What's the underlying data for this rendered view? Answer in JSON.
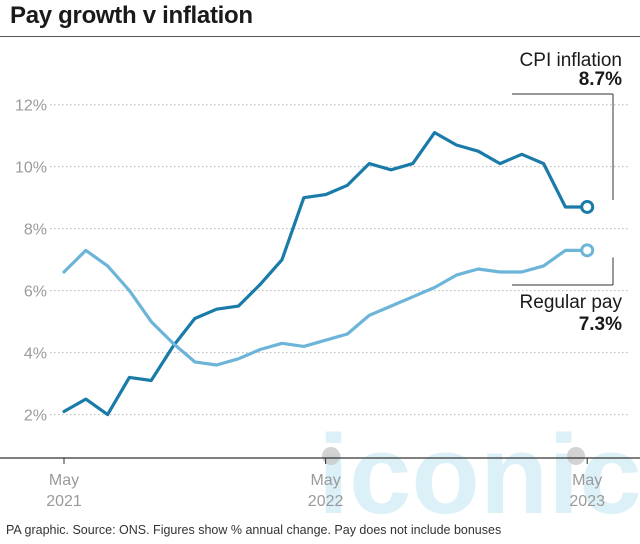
{
  "title": "Pay growth v inflation",
  "footnote": "PA graphic. Source: ONS. Figures show % annual change. Pay does not include bonuses",
  "watermark": "iconic",
  "chart_data": {
    "type": "line",
    "title": "Pay growth v inflation",
    "xlabel": "",
    "ylabel": "",
    "x_ticks": [
      {
        "line1": "May",
        "line2": "2021",
        "index": 0
      },
      {
        "line1": "May",
        "line2": "2022",
        "index": 12
      },
      {
        "line1": "May",
        "line2": "2023",
        "index": 24
      }
    ],
    "y_ticks": [
      "2%",
      "4%",
      "6%",
      "8%",
      "10%",
      "12%"
    ],
    "y_tick_values": [
      2,
      4,
      6,
      8,
      10,
      12
    ],
    "ylim": [
      0.6,
      12.7
    ],
    "xlim": [
      0,
      24.3
    ],
    "grid": true,
    "x_categories": [
      "May 2021",
      "Jun 2021",
      "Jul 2021",
      "Aug 2021",
      "Sep 2021",
      "Oct 2021",
      "Nov 2021",
      "Dec 2021",
      "Jan 2022",
      "Feb 2022",
      "Mar 2022",
      "Apr 2022",
      "May 2022",
      "Jun 2022",
      "Jul 2022",
      "Aug 2022",
      "Sep 2022",
      "Oct 2022",
      "Nov 2022",
      "Dec 2022",
      "Jan 2023",
      "Feb 2023",
      "Mar 2023",
      "Apr 2023",
      "May 2023"
    ],
    "series": [
      {
        "name": "CPI inflation",
        "color": "#1a7ba8",
        "end_label": "CPI inflation",
        "end_value": "8.7%",
        "values": [
          2.1,
          2.5,
          2.0,
          3.2,
          3.1,
          4.2,
          5.1,
          5.4,
          5.5,
          6.2,
          7.0,
          9.0,
          9.1,
          9.4,
          10.1,
          9.9,
          10.1,
          11.1,
          10.7,
          10.5,
          10.1,
          10.4,
          10.1,
          8.7,
          8.7
        ]
      },
      {
        "name": "Regular pay",
        "color": "#6cb4d8",
        "end_label": "Regular pay",
        "end_value": "7.3%",
        "values": [
          6.6,
          7.3,
          6.8,
          6.0,
          5.0,
          4.3,
          3.7,
          3.6,
          3.8,
          4.1,
          4.3,
          4.2,
          4.4,
          4.6,
          5.2,
          5.5,
          5.8,
          6.1,
          6.5,
          6.7,
          6.6,
          6.6,
          6.8,
          7.3,
          7.3
        ]
      }
    ]
  }
}
